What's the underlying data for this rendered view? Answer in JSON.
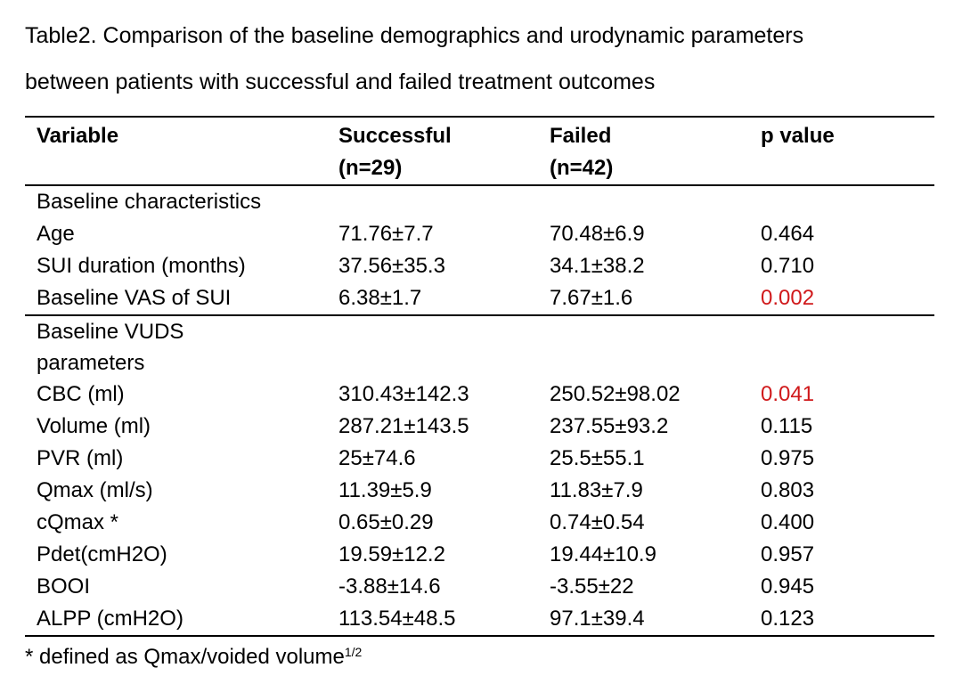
{
  "caption": {
    "line1": "Table2. Comparison of the baseline demographics and urodynamic parameters",
    "line2": "between patients with successful and failed treatment outcomes"
  },
  "table": {
    "headers": {
      "variable": "Variable",
      "successful": "Successful",
      "successful_n": "(n=29)",
      "failed": "Failed",
      "failed_n": "(n=42)",
      "p_value": "p value"
    },
    "groups": [
      {
        "title": "Baseline characteristics",
        "rows": [
          {
            "variable": "Age",
            "successful": "71.76±7.7",
            "failed": "70.48±6.9",
            "p": "0.464",
            "significant": false
          },
          {
            "variable": "SUI duration (months)",
            "successful": "37.56±35.3",
            "failed": "34.1±38.2",
            "p": "0.710",
            "significant": false
          },
          {
            "variable": "Baseline VAS of SUI",
            "successful": "6.38±1.7",
            "failed": "7.67±1.6",
            "p": "0.002",
            "significant": true
          }
        ]
      },
      {
        "title_line1": "Baseline VUDS",
        "title_line2": "parameters",
        "rows": [
          {
            "variable": "CBC (ml)",
            "successful": "310.43±142.3",
            "failed": "250.52±98.02",
            "p": "0.041",
            "significant": true
          },
          {
            "variable": "Volume (ml)",
            "successful": "287.21±143.5",
            "failed": "237.55±93.2",
            "p": "0.115",
            "significant": false
          },
          {
            "variable": "PVR (ml)",
            "successful": "25±74.6",
            "failed": "25.5±55.1",
            "p": "0.975",
            "significant": false
          },
          {
            "variable": "Qmax (ml/s)",
            "successful": "11.39±5.9",
            "failed": "11.83±7.9",
            "p": "0.803",
            "significant": false
          },
          {
            "variable": "cQmax *",
            "successful": "0.65±0.29",
            "failed": "0.74±0.54",
            "p": "0.400",
            "significant": false
          },
          {
            "variable": "Pdet(cmH2O)",
            "successful": "19.59±12.2",
            "failed": "19.44±10.9",
            "p": "0.957",
            "significant": false
          },
          {
            "variable": "BOOI",
            "successful": "-3.88±14.6",
            "failed": "-3.55±22",
            "p": "0.945",
            "significant": false
          },
          {
            "variable": "ALPP (cmH2O)",
            "successful": "113.54±48.5",
            "failed": "97.1±39.4",
            "p": "0.123",
            "significant": false
          }
        ]
      }
    ]
  },
  "footnote": {
    "text": "* defined as Qmax/voided volume",
    "superscript": "1/2"
  },
  "colors": {
    "significant": "#d0191b",
    "text": "#000000"
  }
}
